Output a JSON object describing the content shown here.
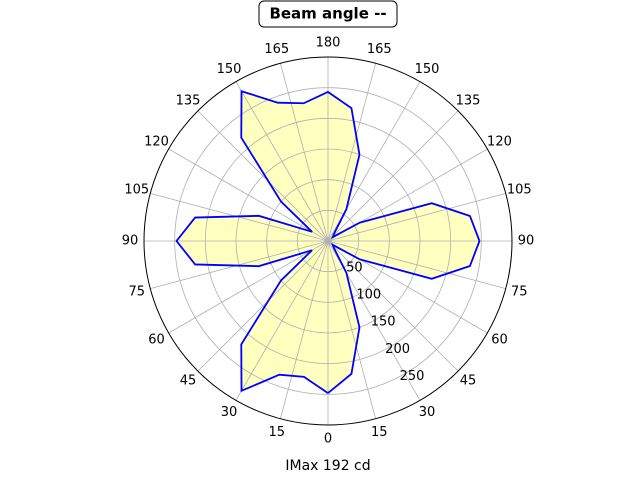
{
  "chart_data": {
    "type": "polar",
    "title": "Beam angle --",
    "xlabel": "IMax 192 cd",
    "x": [
      0,
      10,
      20,
      30,
      40,
      50,
      60,
      70,
      80,
      90,
      100,
      110,
      120,
      130,
      140,
      150,
      160,
      170,
      180,
      190,
      200,
      210,
      220,
      230,
      240,
      250,
      260,
      270,
      280,
      290,
      300,
      310,
      320,
      330,
      340,
      350,
      360
    ],
    "series": [
      {
        "color": "#0000ff",
        "fill": "#ffffc0",
        "values": [
          248,
          225,
          232,
          282,
          220,
          100,
          30,
          120,
          220,
          247,
          220,
          120,
          30,
          100,
          220,
          282,
          240,
          228,
          243,
          220,
          150,
          60,
          15,
          10,
          60,
          180,
          235,
          247,
          235,
          180,
          60,
          10,
          15,
          60,
          150,
          220,
          248
        ]
      }
    ],
    "ylim": [
      0,
      300
    ],
    "yticks": [
      50,
      100,
      150,
      200,
      250
    ],
    "xticks": [
      0,
      15,
      30,
      45,
      60,
      75,
      90,
      105,
      120,
      135,
      150,
      165,
      180,
      {
        "value": 195,
        "label": "165"
      },
      {
        "value": 210,
        "label": "150"
      },
      {
        "value": 225,
        "label": "135"
      },
      {
        "value": 240,
        "label": "120"
      },
      {
        "value": 255,
        "label": "105"
      },
      {
        "value": 270,
        "label": "90"
      },
      {
        "value": 285,
        "label": "75"
      },
      {
        "value": 300,
        "label": "60"
      },
      {
        "value": 315,
        "label": "45"
      },
      {
        "value": 330,
        "label": "30"
      },
      {
        "value": 345,
        "label": "15"
      }
    ],
    "grid": true
  }
}
